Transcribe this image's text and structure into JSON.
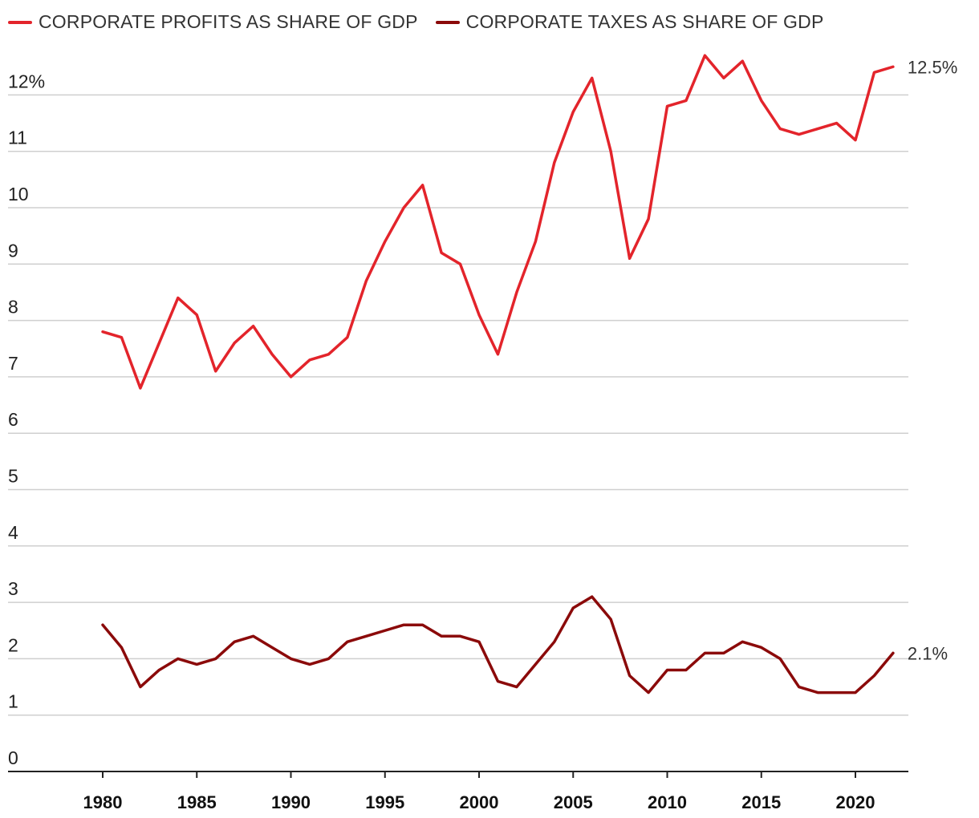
{
  "chart_data": {
    "type": "line",
    "title": "",
    "xlabel": "",
    "ylabel": "",
    "xlim": [
      1975,
      2023
    ],
    "ylim": [
      0,
      13
    ],
    "grid": true,
    "legend_placement": "top-left",
    "y_ticks": [
      {
        "value": 0,
        "label": "0"
      },
      {
        "value": 1,
        "label": "1"
      },
      {
        "value": 2,
        "label": "2"
      },
      {
        "value": 3,
        "label": "3"
      },
      {
        "value": 4,
        "label": "4"
      },
      {
        "value": 5,
        "label": "5"
      },
      {
        "value": 6,
        "label": "6"
      },
      {
        "value": 7,
        "label": "7"
      },
      {
        "value": 8,
        "label": "8"
      },
      {
        "value": 9,
        "label": "9"
      },
      {
        "value": 10,
        "label": "10"
      },
      {
        "value": 11,
        "label": "11"
      },
      {
        "value": 12,
        "label": "12%"
      }
    ],
    "x_ticks": [
      {
        "value": 1980,
        "label": "1980"
      },
      {
        "value": 1985,
        "label": "1985"
      },
      {
        "value": 1990,
        "label": "1990"
      },
      {
        "value": 1995,
        "label": "1995"
      },
      {
        "value": 2000,
        "label": "2000"
      },
      {
        "value": 2005,
        "label": "2005"
      },
      {
        "value": 2010,
        "label": "2010"
      },
      {
        "value": 2015,
        "label": "2015"
      },
      {
        "value": 2020,
        "label": "2020"
      }
    ],
    "x": [
      1980,
      1981,
      1982,
      1983,
      1984,
      1985,
      1986,
      1987,
      1988,
      1989,
      1990,
      1991,
      1992,
      1993,
      1994,
      1995,
      1996,
      1997,
      1998,
      1999,
      2000,
      2001,
      2002,
      2003,
      2004,
      2005,
      2006,
      2007,
      2008,
      2009,
      2010,
      2011,
      2012,
      2013,
      2014,
      2015,
      2016,
      2017,
      2018,
      2019,
      2020,
      2021,
      2022
    ],
    "series": [
      {
        "name": "CORPORATE PROFITS AS SHARE OF GDP",
        "color": "#e3242b",
        "end_label": "12.5%",
        "values": [
          7.8,
          7.7,
          6.8,
          7.6,
          8.4,
          8.1,
          7.1,
          7.6,
          7.9,
          7.4,
          7.0,
          7.3,
          7.4,
          7.7,
          8.7,
          9.4,
          10.0,
          10.4,
          9.2,
          9.0,
          8.1,
          7.4,
          8.5,
          9.4,
          10.8,
          11.7,
          12.3,
          11.0,
          9.1,
          9.8,
          11.8,
          11.9,
          12.7,
          12.3,
          12.6,
          11.9,
          11.4,
          11.3,
          11.4,
          11.5,
          11.2,
          12.4,
          12.5
        ]
      },
      {
        "name": "CORPORATE TAXES AS SHARE OF GDP",
        "color": "#8b0a0a",
        "end_label": "2.1%",
        "values": [
          2.6,
          2.2,
          1.5,
          1.8,
          2.0,
          1.9,
          2.0,
          2.3,
          2.4,
          2.2,
          2.0,
          1.9,
          2.0,
          2.3,
          2.4,
          2.5,
          2.6,
          2.6,
          2.4,
          2.4,
          2.3,
          1.6,
          1.5,
          1.9,
          2.3,
          2.9,
          3.1,
          2.7,
          1.7,
          1.4,
          1.8,
          1.8,
          2.1,
          2.1,
          2.3,
          2.2,
          2.0,
          1.5,
          1.4,
          1.4,
          1.4,
          1.7,
          2.1
        ]
      }
    ]
  }
}
